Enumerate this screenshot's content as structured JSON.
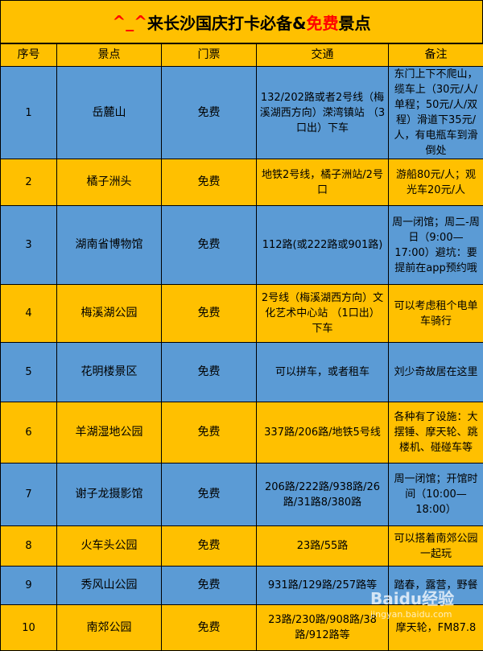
{
  "title": {
    "prefix": "^_^",
    "main": "来长沙国庆打卡必备&",
    "highlight": "免费",
    "suffix": "景点"
  },
  "headers": [
    "序号",
    "景点",
    "门票",
    "交通",
    "备注"
  ],
  "rows": [
    {
      "no": "1",
      "name": "岳麓山",
      "ticket": "免费",
      "transport": "132/202路或者2号线（梅溪湖西方向）溁湾镇站 （3口出）下车",
      "note": "东门上下不爬山，缆车上（30元/人/单程；50元/人/双程）滑道下35元/人，有电瓶车到滑倒处"
    },
    {
      "no": "2",
      "name": "橘子洲头",
      "ticket": "免费",
      "transport": "地铁2号线，橘子洲站/2号口",
      "note": "游船80元/人；观光车20元/人"
    },
    {
      "no": "3",
      "name": "湖南省博物馆",
      "ticket": "免费",
      "transport": "112路(或222路或901路)",
      "note": "周一闭馆；周二-周日（9:00—17:00）避坑：要提前在app预约哦"
    },
    {
      "no": "4",
      "name": "梅溪湖公园",
      "ticket": "免费",
      "transport": "2号线（梅溪湖西方向）文化艺术中心站 （1口出） 下车",
      "note": "可以考虑租个电单车骑行"
    },
    {
      "no": "5",
      "name": "花明楼景区",
      "ticket": "免费",
      "transport": "可以拼车，或者租车",
      "note": "刘少奇故居在这里"
    },
    {
      "no": "6",
      "name": "羊湖湿地公园",
      "ticket": "免费",
      "transport": "337路/206路/地铁5号线",
      "note": "各种有了设施：大摆锤、摩天轮、跳楼机、碰碰车等"
    },
    {
      "no": "7",
      "name": "谢子龙摄影馆",
      "ticket": "免费",
      "transport": "206路/222路/938路/26路/31路8/380路",
      "note": "周一闭馆；开馆时间（10:00—18:00）"
    },
    {
      "no": "8",
      "name": "火车头公园",
      "ticket": "免费",
      "transport": "23路/55路",
      "note": "可以搭着南郊公园一起玩"
    },
    {
      "no": "9",
      "name": "秀风山公园",
      "ticket": "免费",
      "transport": "931路/129路/257路等",
      "note": "踏春，露营，野餐"
    },
    {
      "no": "10",
      "name": "南郊公园",
      "ticket": "免费",
      "transport": "23路/230路/908路/38路/912路等",
      "note": "摩天轮，FM87.8"
    }
  ],
  "watermark": {
    "brand": "Baidu经验",
    "url": "jingyan.baidu.com"
  },
  "colors": {
    "blue": "#5b9bd5",
    "orange": "#ffc000",
    "highlight": "#ff0000"
  }
}
